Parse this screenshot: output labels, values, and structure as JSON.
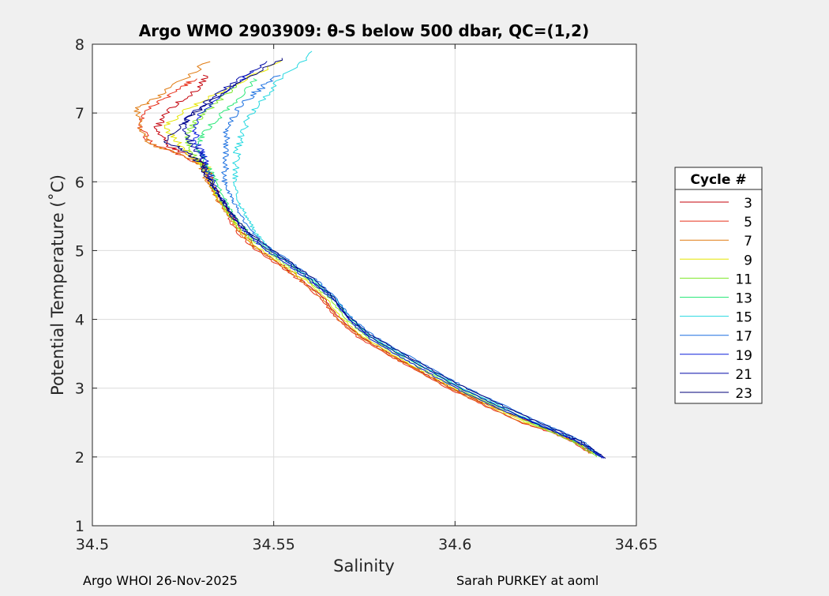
{
  "chart_data": {
    "type": "line",
    "title": "Argo WMO 2903909: θ-S below 500 dbar,  QC=(1,2)",
    "xlabel": "Salinity",
    "ylabel": "Potential Temperature (˚C)",
    "xlim": [
      34.5,
      34.65
    ],
    "ylim": [
      1,
      8
    ],
    "xticks": [
      34.5,
      34.55,
      34.6,
      34.65
    ],
    "xtick_labels": [
      "34.5",
      "34.55",
      "34.6",
      "34.65"
    ],
    "yticks": [
      1,
      2,
      3,
      4,
      5,
      6,
      7,
      8
    ],
    "ytick_labels": [
      "1",
      "2",
      "3",
      "4",
      "5",
      "6",
      "7",
      "8"
    ],
    "grid": true,
    "legend_title": "Cycle #",
    "legend_position": "right",
    "series": [
      {
        "name": "3",
        "color": "#c4000a",
        "points": [
          [
            34.5315,
            7.55
          ],
          [
            34.528,
            7.3
          ],
          [
            34.521,
            7.05
          ],
          [
            34.518,
            6.8
          ],
          [
            34.52,
            6.55
          ],
          [
            34.526,
            6.4
          ],
          [
            34.531,
            6.25
          ],
          [
            34.533,
            6.0
          ],
          [
            34.535,
            5.8
          ],
          [
            34.538,
            5.55
          ],
          [
            34.5405,
            5.3
          ],
          [
            34.545,
            5.05
          ],
          [
            34.552,
            4.8
          ],
          [
            34.5585,
            4.55
          ],
          [
            34.564,
            4.3
          ],
          [
            34.5685,
            4.0
          ],
          [
            34.574,
            3.75
          ],
          [
            34.582,
            3.5
          ],
          [
            34.5905,
            3.25
          ],
          [
            34.599,
            3.0
          ],
          [
            34.609,
            2.75
          ],
          [
            34.619,
            2.55
          ],
          [
            34.628,
            2.35
          ],
          [
            34.634,
            2.2
          ],
          [
            34.638,
            2.05
          ]
        ]
      },
      {
        "name": "5",
        "color": "#e8301a",
        "points": [
          [
            34.528,
            7.5
          ],
          [
            34.523,
            7.3
          ],
          [
            34.515,
            7.05
          ],
          [
            34.513,
            6.8
          ],
          [
            34.516,
            6.55
          ],
          [
            34.524,
            6.4
          ],
          [
            34.53,
            6.25
          ],
          [
            34.532,
            6.0
          ],
          [
            34.534,
            5.8
          ],
          [
            34.537,
            5.55
          ],
          [
            34.5395,
            5.3
          ],
          [
            34.544,
            5.05
          ],
          [
            34.551,
            4.8
          ],
          [
            34.5575,
            4.55
          ],
          [
            34.563,
            4.3
          ],
          [
            34.5675,
            4.0
          ],
          [
            34.573,
            3.75
          ],
          [
            34.581,
            3.5
          ],
          [
            34.5895,
            3.25
          ],
          [
            34.598,
            3.0
          ],
          [
            34.608,
            2.75
          ],
          [
            34.618,
            2.5
          ],
          [
            34.627,
            2.35
          ],
          [
            34.633,
            2.2
          ],
          [
            34.637,
            2.05
          ]
        ]
      },
      {
        "name": "7",
        "color": "#e07a10",
        "points": [
          [
            34.532,
            7.75
          ],
          [
            34.52,
            7.3
          ],
          [
            34.512,
            7.05
          ],
          [
            34.513,
            6.8
          ],
          [
            34.516,
            6.55
          ],
          [
            34.524,
            6.4
          ],
          [
            34.53,
            6.25
          ],
          [
            34.532,
            6.0
          ],
          [
            34.5335,
            5.8
          ],
          [
            34.537,
            5.55
          ],
          [
            34.54,
            5.3
          ],
          [
            34.5445,
            5.05
          ],
          [
            34.5515,
            4.8
          ],
          [
            34.558,
            4.55
          ],
          [
            34.5635,
            4.3
          ],
          [
            34.568,
            4.0
          ],
          [
            34.5735,
            3.75
          ],
          [
            34.5815,
            3.5
          ],
          [
            34.59,
            3.25
          ],
          [
            34.5985,
            3.0
          ],
          [
            34.6085,
            2.75
          ],
          [
            34.6185,
            2.5
          ],
          [
            34.6275,
            2.35
          ],
          [
            34.6335,
            2.2
          ],
          [
            34.6375,
            2.05
          ]
        ]
      },
      {
        "name": "9",
        "color": "#e6e600",
        "points": [
          [
            34.552,
            7.75
          ],
          [
            34.535,
            7.3
          ],
          [
            34.526,
            7.05
          ],
          [
            34.52,
            6.8
          ],
          [
            34.524,
            6.55
          ],
          [
            34.528,
            6.35
          ],
          [
            34.532,
            6.2
          ],
          [
            34.532,
            6.0
          ],
          [
            34.534,
            5.8
          ],
          [
            34.5375,
            5.55
          ],
          [
            34.5405,
            5.3
          ],
          [
            34.5455,
            5.05
          ],
          [
            34.5525,
            4.8
          ],
          [
            34.559,
            4.55
          ],
          [
            34.5645,
            4.3
          ],
          [
            34.569,
            4.0
          ],
          [
            34.5745,
            3.75
          ],
          [
            34.5825,
            3.5
          ],
          [
            34.591,
            3.25
          ],
          [
            34.5995,
            3.0
          ],
          [
            34.6095,
            2.75
          ],
          [
            34.6195,
            2.5
          ],
          [
            34.6285,
            2.35
          ],
          [
            34.6345,
            2.2
          ],
          [
            34.6385,
            2.05
          ]
        ]
      },
      {
        "name": "11",
        "color": "#7ee82a",
        "points": [
          [
            34.54,
            7.4
          ],
          [
            34.533,
            7.1
          ],
          [
            34.529,
            6.9
          ],
          [
            34.526,
            6.7
          ],
          [
            34.527,
            6.5
          ],
          [
            34.529,
            6.3
          ],
          [
            34.532,
            6.1
          ],
          [
            34.5335,
            5.9
          ],
          [
            34.5355,
            5.7
          ],
          [
            34.538,
            5.5
          ],
          [
            34.541,
            5.3
          ],
          [
            34.5465,
            5.05
          ],
          [
            34.5535,
            4.8
          ],
          [
            34.56,
            4.55
          ],
          [
            34.5655,
            4.3
          ],
          [
            34.57,
            4.0
          ],
          [
            34.5755,
            3.75
          ],
          [
            34.5835,
            3.5
          ],
          [
            34.592,
            3.25
          ],
          [
            34.6005,
            3.0
          ],
          [
            34.6105,
            2.75
          ],
          [
            34.6205,
            2.5
          ],
          [
            34.6295,
            2.3
          ],
          [
            34.635,
            2.15
          ],
          [
            34.639,
            2.0
          ]
        ]
      },
      {
        "name": "13",
        "color": "#2ce87a",
        "points": [
          [
            34.545,
            7.5
          ],
          [
            34.54,
            7.2
          ],
          [
            34.535,
            6.95
          ],
          [
            34.531,
            6.7
          ],
          [
            34.529,
            6.5
          ],
          [
            34.531,
            6.3
          ],
          [
            34.533,
            6.1
          ],
          [
            34.535,
            5.9
          ],
          [
            34.537,
            5.7
          ],
          [
            34.539,
            5.5
          ],
          [
            34.5425,
            5.3
          ],
          [
            34.5475,
            5.05
          ],
          [
            34.5545,
            4.8
          ],
          [
            34.561,
            4.55
          ],
          [
            34.5665,
            4.3
          ],
          [
            34.571,
            4.0
          ],
          [
            34.5765,
            3.75
          ],
          [
            34.5845,
            3.5
          ],
          [
            34.593,
            3.25
          ],
          [
            34.6015,
            3.0
          ],
          [
            34.6115,
            2.75
          ],
          [
            34.6215,
            2.5
          ],
          [
            34.6305,
            2.3
          ],
          [
            34.636,
            2.15
          ],
          [
            34.64,
            2.0
          ]
        ]
      },
      {
        "name": "15",
        "color": "#24d8e0",
        "points": [
          [
            34.5615,
            7.9
          ],
          [
            34.552,
            7.5
          ],
          [
            34.545,
            7.1
          ],
          [
            34.542,
            6.8
          ],
          [
            34.54,
            6.5
          ],
          [
            34.5395,
            6.2
          ],
          [
            34.539,
            5.95
          ],
          [
            34.5405,
            5.7
          ],
          [
            34.5425,
            5.5
          ],
          [
            34.5445,
            5.3
          ],
          [
            34.5485,
            5.05
          ],
          [
            34.555,
            4.8
          ],
          [
            34.5615,
            4.55
          ],
          [
            34.567,
            4.3
          ],
          [
            34.5715,
            4.0
          ],
          [
            34.577,
            3.75
          ],
          [
            34.585,
            3.5
          ],
          [
            34.5935,
            3.25
          ],
          [
            34.602,
            3.0
          ],
          [
            34.612,
            2.75
          ],
          [
            34.622,
            2.5
          ],
          [
            34.631,
            2.3
          ],
          [
            34.6365,
            2.15
          ],
          [
            34.6405,
            2.0
          ]
        ]
      },
      {
        "name": "17",
        "color": "#1a6fe0",
        "points": [
          [
            34.551,
            7.55
          ],
          [
            34.545,
            7.3
          ],
          [
            34.54,
            7.05
          ],
          [
            34.537,
            6.8
          ],
          [
            34.537,
            6.55
          ],
          [
            34.5365,
            6.3
          ],
          [
            34.5365,
            6.05
          ],
          [
            34.538,
            5.8
          ],
          [
            34.54,
            5.6
          ],
          [
            34.543,
            5.35
          ],
          [
            34.547,
            5.1
          ],
          [
            34.5545,
            4.85
          ],
          [
            34.561,
            4.6
          ],
          [
            34.5665,
            4.35
          ],
          [
            34.571,
            4.05
          ],
          [
            34.5765,
            3.8
          ],
          [
            34.5845,
            3.55
          ],
          [
            34.593,
            3.3
          ],
          [
            34.6015,
            3.05
          ],
          [
            34.6115,
            2.8
          ],
          [
            34.6215,
            2.55
          ],
          [
            34.6305,
            2.35
          ],
          [
            34.636,
            2.2
          ],
          [
            34.6405,
            2.0
          ]
        ]
      },
      {
        "name": "19",
        "color": "#0a1edc",
        "points": [
          [
            34.544,
            7.6
          ],
          [
            34.537,
            7.3
          ],
          [
            34.531,
            7.05
          ],
          [
            34.528,
            6.8
          ],
          [
            34.529,
            6.55
          ],
          [
            34.531,
            6.35
          ],
          [
            34.532,
            6.15
          ],
          [
            34.534,
            5.9
          ],
          [
            34.5365,
            5.7
          ],
          [
            34.5395,
            5.45
          ],
          [
            34.5425,
            5.25
          ],
          [
            34.548,
            5.0
          ],
          [
            34.555,
            4.75
          ],
          [
            34.5615,
            4.5
          ],
          [
            34.567,
            4.25
          ],
          [
            34.5715,
            3.95
          ],
          [
            34.577,
            3.7
          ],
          [
            34.585,
            3.45
          ],
          [
            34.5935,
            3.2
          ],
          [
            34.602,
            2.95
          ],
          [
            34.612,
            2.7
          ],
          [
            34.622,
            2.5
          ],
          [
            34.631,
            2.3
          ],
          [
            34.6365,
            2.15
          ],
          [
            34.641,
            1.98
          ]
        ]
      },
      {
        "name": "21",
        "color": "#0008a8",
        "points": [
          [
            34.548,
            7.75
          ],
          [
            34.538,
            7.4
          ],
          [
            34.53,
            7.1
          ],
          [
            34.525,
            6.85
          ],
          [
            34.527,
            6.6
          ],
          [
            34.5295,
            6.4
          ],
          [
            34.531,
            6.2
          ],
          [
            34.533,
            5.95
          ],
          [
            34.5355,
            5.75
          ],
          [
            34.5385,
            5.5
          ],
          [
            34.542,
            5.3
          ],
          [
            34.5475,
            5.05
          ],
          [
            34.5545,
            4.8
          ],
          [
            34.561,
            4.55
          ],
          [
            34.5665,
            4.3
          ],
          [
            34.571,
            4.0
          ],
          [
            34.5765,
            3.75
          ],
          [
            34.5845,
            3.5
          ],
          [
            34.593,
            3.25
          ],
          [
            34.6015,
            3.0
          ],
          [
            34.6115,
            2.75
          ],
          [
            34.6215,
            2.5
          ],
          [
            34.6305,
            2.3
          ],
          [
            34.636,
            2.15
          ],
          [
            34.6405,
            1.98
          ]
        ]
      },
      {
        "name": "23",
        "color": "#000078",
        "points": [
          [
            34.5525,
            7.8
          ],
          [
            34.54,
            7.45
          ],
          [
            34.532,
            7.15
          ],
          [
            34.526,
            6.9
          ],
          [
            34.52,
            6.6
          ],
          [
            34.5255,
            6.45
          ],
          [
            34.53,
            6.25
          ],
          [
            34.5325,
            6.0
          ],
          [
            34.535,
            5.8
          ],
          [
            34.538,
            5.55
          ],
          [
            34.5415,
            5.35
          ],
          [
            34.547,
            5.1
          ],
          [
            34.554,
            4.85
          ],
          [
            34.5605,
            4.6
          ],
          [
            34.566,
            4.35
          ],
          [
            34.5705,
            4.05
          ],
          [
            34.576,
            3.8
          ],
          [
            34.584,
            3.55
          ],
          [
            34.5925,
            3.3
          ],
          [
            34.601,
            3.05
          ],
          [
            34.611,
            2.8
          ],
          [
            34.621,
            2.55
          ],
          [
            34.63,
            2.35
          ],
          [
            34.6355,
            2.2
          ],
          [
            34.6415,
            1.98
          ]
        ]
      }
    ]
  },
  "footer": {
    "left": "Argo WHOI 26-Nov-2025",
    "right": "Sarah PURKEY at aoml"
  }
}
